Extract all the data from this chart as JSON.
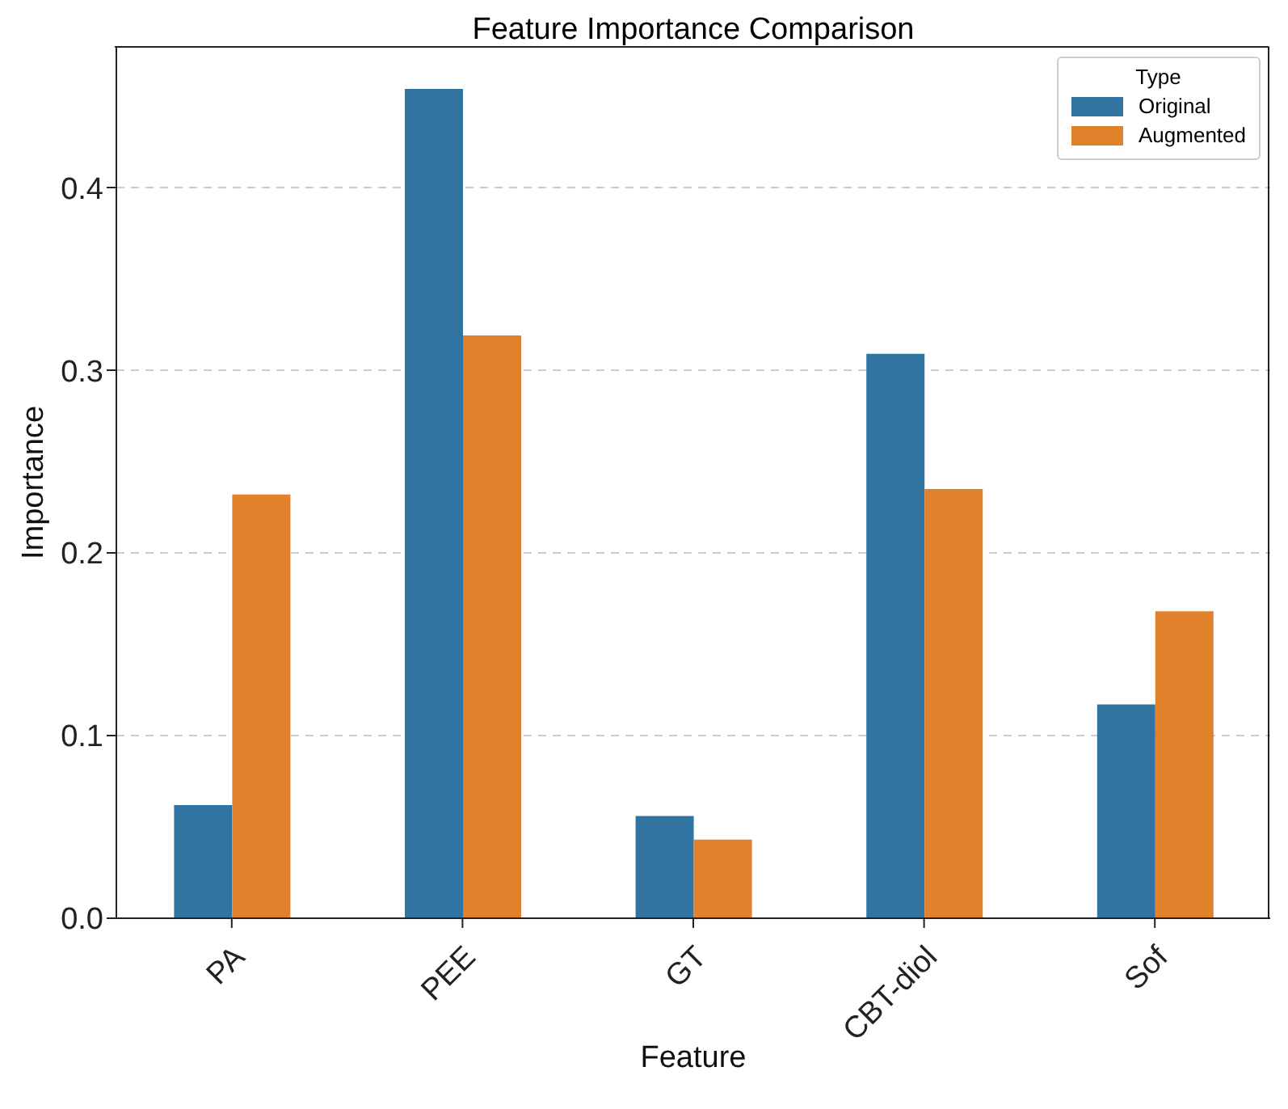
{
  "chart_data": {
    "type": "bar",
    "title": "Feature Importance Comparison",
    "xlabel": "Feature",
    "ylabel": "Importance",
    "legend_title": "Type",
    "categories": [
      "PA",
      "PEE",
      "GT",
      "CBT-diol",
      "Sof"
    ],
    "series": [
      {
        "name": "Original",
        "color": "#3274a1",
        "values": [
          0.062,
          0.454,
          0.056,
          0.309,
          0.117
        ]
      },
      {
        "name": "Augmented",
        "color": "#e1812c",
        "values": [
          0.232,
          0.319,
          0.043,
          0.235,
          0.168
        ]
      }
    ],
    "ylim": [
      0,
      0.477
    ],
    "yticks": [
      {
        "value": 0,
        "label": "0.0"
      },
      0.1,
      0.2,
      0.3,
      0.4
    ],
    "grid": "y",
    "legend": "top right"
  }
}
